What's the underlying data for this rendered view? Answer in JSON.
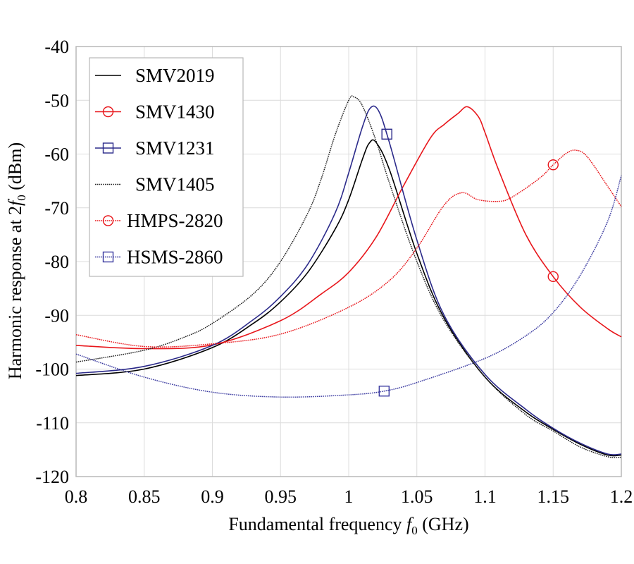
{
  "chart_data": {
    "type": "line",
    "title": "",
    "xlabel": "Fundamental frequency f0 (GHz)",
    "xlabel_parts": {
      "pre": "Fundamental frequency ",
      "var": "f",
      "sub": "0",
      "post": " (GHz)"
    },
    "ylabel": "Harmonic response at 2f0 (dBm)",
    "ylabel_parts": {
      "pre": "Harmonic response at 2",
      "var": "f",
      "sub": "0",
      "post": " (dBm)"
    },
    "xlim": [
      0.8,
      1.2
    ],
    "ylim": [
      -120,
      -40
    ],
    "x_ticks": [
      "0.8",
      "0.85",
      "0.9",
      "0.95",
      "1",
      "1.05",
      "1.1",
      "1.15",
      "1.2"
    ],
    "x_tick_values": [
      0.8,
      0.85,
      0.9,
      0.95,
      1.0,
      1.05,
      1.1,
      1.15,
      1.2
    ],
    "y_ticks": [
      "-40",
      "-50",
      "-60",
      "-70",
      "-80",
      "-90",
      "-100",
      "-110",
      "-120"
    ],
    "y_tick_values": [
      -40,
      -50,
      -60,
      -70,
      -80,
      -90,
      -100,
      -110,
      -120
    ],
    "grid": true,
    "legend_position": "top-left",
    "series": [
      {
        "name": "SMV2019",
        "color": "#000000",
        "style": "solid",
        "marker": "none",
        "x": [
          0.8,
          0.85,
          0.9,
          0.93,
          0.95,
          0.97,
          0.99,
          1.0,
          1.01,
          1.015,
          1.02,
          1.03,
          1.05,
          1.07,
          1.1,
          1.13,
          1.15,
          1.17,
          1.19,
          1.2
        ],
        "y": [
          -101.2,
          -100,
          -96,
          -91.5,
          -87.5,
          -82,
          -74,
          -68.5,
          -61,
          -58,
          -57.8,
          -63,
          -78.5,
          -90.5,
          -101.5,
          -108,
          -111.2,
          -114,
          -116,
          -116
        ]
      },
      {
        "name": "SMV1430",
        "color": "#e8161b",
        "style": "solid",
        "marker": "circle",
        "marker_points": [
          [
            1.15,
            -82.8
          ]
        ],
        "x": [
          0.8,
          0.85,
          0.9,
          0.95,
          0.98,
          1.0,
          1.02,
          1.04,
          1.06,
          1.07,
          1.08,
          1.087,
          1.095,
          1.1,
          1.11,
          1.13,
          1.15,
          1.17,
          1.19,
          1.2
        ],
        "y": [
          -95.6,
          -96.2,
          -95.5,
          -91,
          -86,
          -82,
          -75.5,
          -66,
          -57,
          -54.5,
          -52.5,
          -51.2,
          -53,
          -56,
          -63,
          -75,
          -82.8,
          -88.5,
          -92.5,
          -94
        ]
      },
      {
        "name": "SMV1231",
        "color": "#2b2a8a",
        "style": "solid",
        "marker": "square",
        "marker_points": [
          [
            1.028,
            -56.3
          ]
        ],
        "x": [
          0.8,
          0.85,
          0.9,
          0.93,
          0.95,
          0.97,
          0.99,
          1.0,
          1.01,
          1.016,
          1.022,
          1.03,
          1.05,
          1.07,
          1.1,
          1.13,
          1.15,
          1.17,
          1.19,
          1.2
        ],
        "y": [
          -100.8,
          -99.5,
          -95.6,
          -90.8,
          -86.5,
          -80.5,
          -71,
          -63.5,
          -55,
          -51.4,
          -52,
          -58,
          -76,
          -90,
          -101,
          -107.5,
          -111,
          -113.8,
          -115.8,
          -115.8
        ]
      },
      {
        "name": "SMV1405",
        "color": "#222222",
        "style": "dotted",
        "marker": "none",
        "x": [
          0.8,
          0.85,
          0.88,
          0.9,
          0.93,
          0.95,
          0.97,
          0.98,
          0.99,
          1.0,
          1.004,
          1.01,
          1.02,
          1.03,
          1.05,
          1.07,
          1.1,
          1.13,
          1.15,
          1.17,
          1.19,
          1.2
        ],
        "y": [
          -98.7,
          -96.5,
          -94,
          -91.5,
          -86,
          -80,
          -71,
          -64.5,
          -56.5,
          -50,
          -49.4,
          -51,
          -57.5,
          -65.5,
          -80,
          -91,
          -101.5,
          -108.5,
          -111.5,
          -114.5,
          -116.3,
          -116.4
        ]
      },
      {
        "name": "HMPS-2820",
        "color": "#e8161b",
        "style": "dotted",
        "marker": "circle",
        "marker_points": [
          [
            1.15,
            -62
          ]
        ],
        "x": [
          0.8,
          0.85,
          0.9,
          0.95,
          1.0,
          1.03,
          1.05,
          1.07,
          1.083,
          1.095,
          1.11,
          1.12,
          1.14,
          1.15,
          1.16,
          1.167,
          1.175,
          1.19,
          1.2
        ],
        "y": [
          -93.6,
          -95.8,
          -95.3,
          -93.5,
          -88.5,
          -83.5,
          -77.5,
          -69.5,
          -67.2,
          -68.5,
          -68.8,
          -68,
          -64.5,
          -62,
          -59.8,
          -59.3,
          -60.5,
          -66,
          -69.8
        ]
      },
      {
        "name": "HSMS-2860",
        "color": "#3a3aa0",
        "style": "dotted",
        "marker": "square",
        "marker_points": [
          [
            1.026,
            -104.1
          ]
        ],
        "x": [
          0.8,
          0.85,
          0.9,
          0.95,
          1.0,
          1.026,
          1.05,
          1.1,
          1.13,
          1.15,
          1.17,
          1.19,
          1.2
        ],
        "y": [
          -97.2,
          -101.5,
          -104.3,
          -105.2,
          -104.8,
          -104.1,
          -102.5,
          -98,
          -93.8,
          -89.5,
          -82.5,
          -72.5,
          -64
        ]
      }
    ]
  }
}
